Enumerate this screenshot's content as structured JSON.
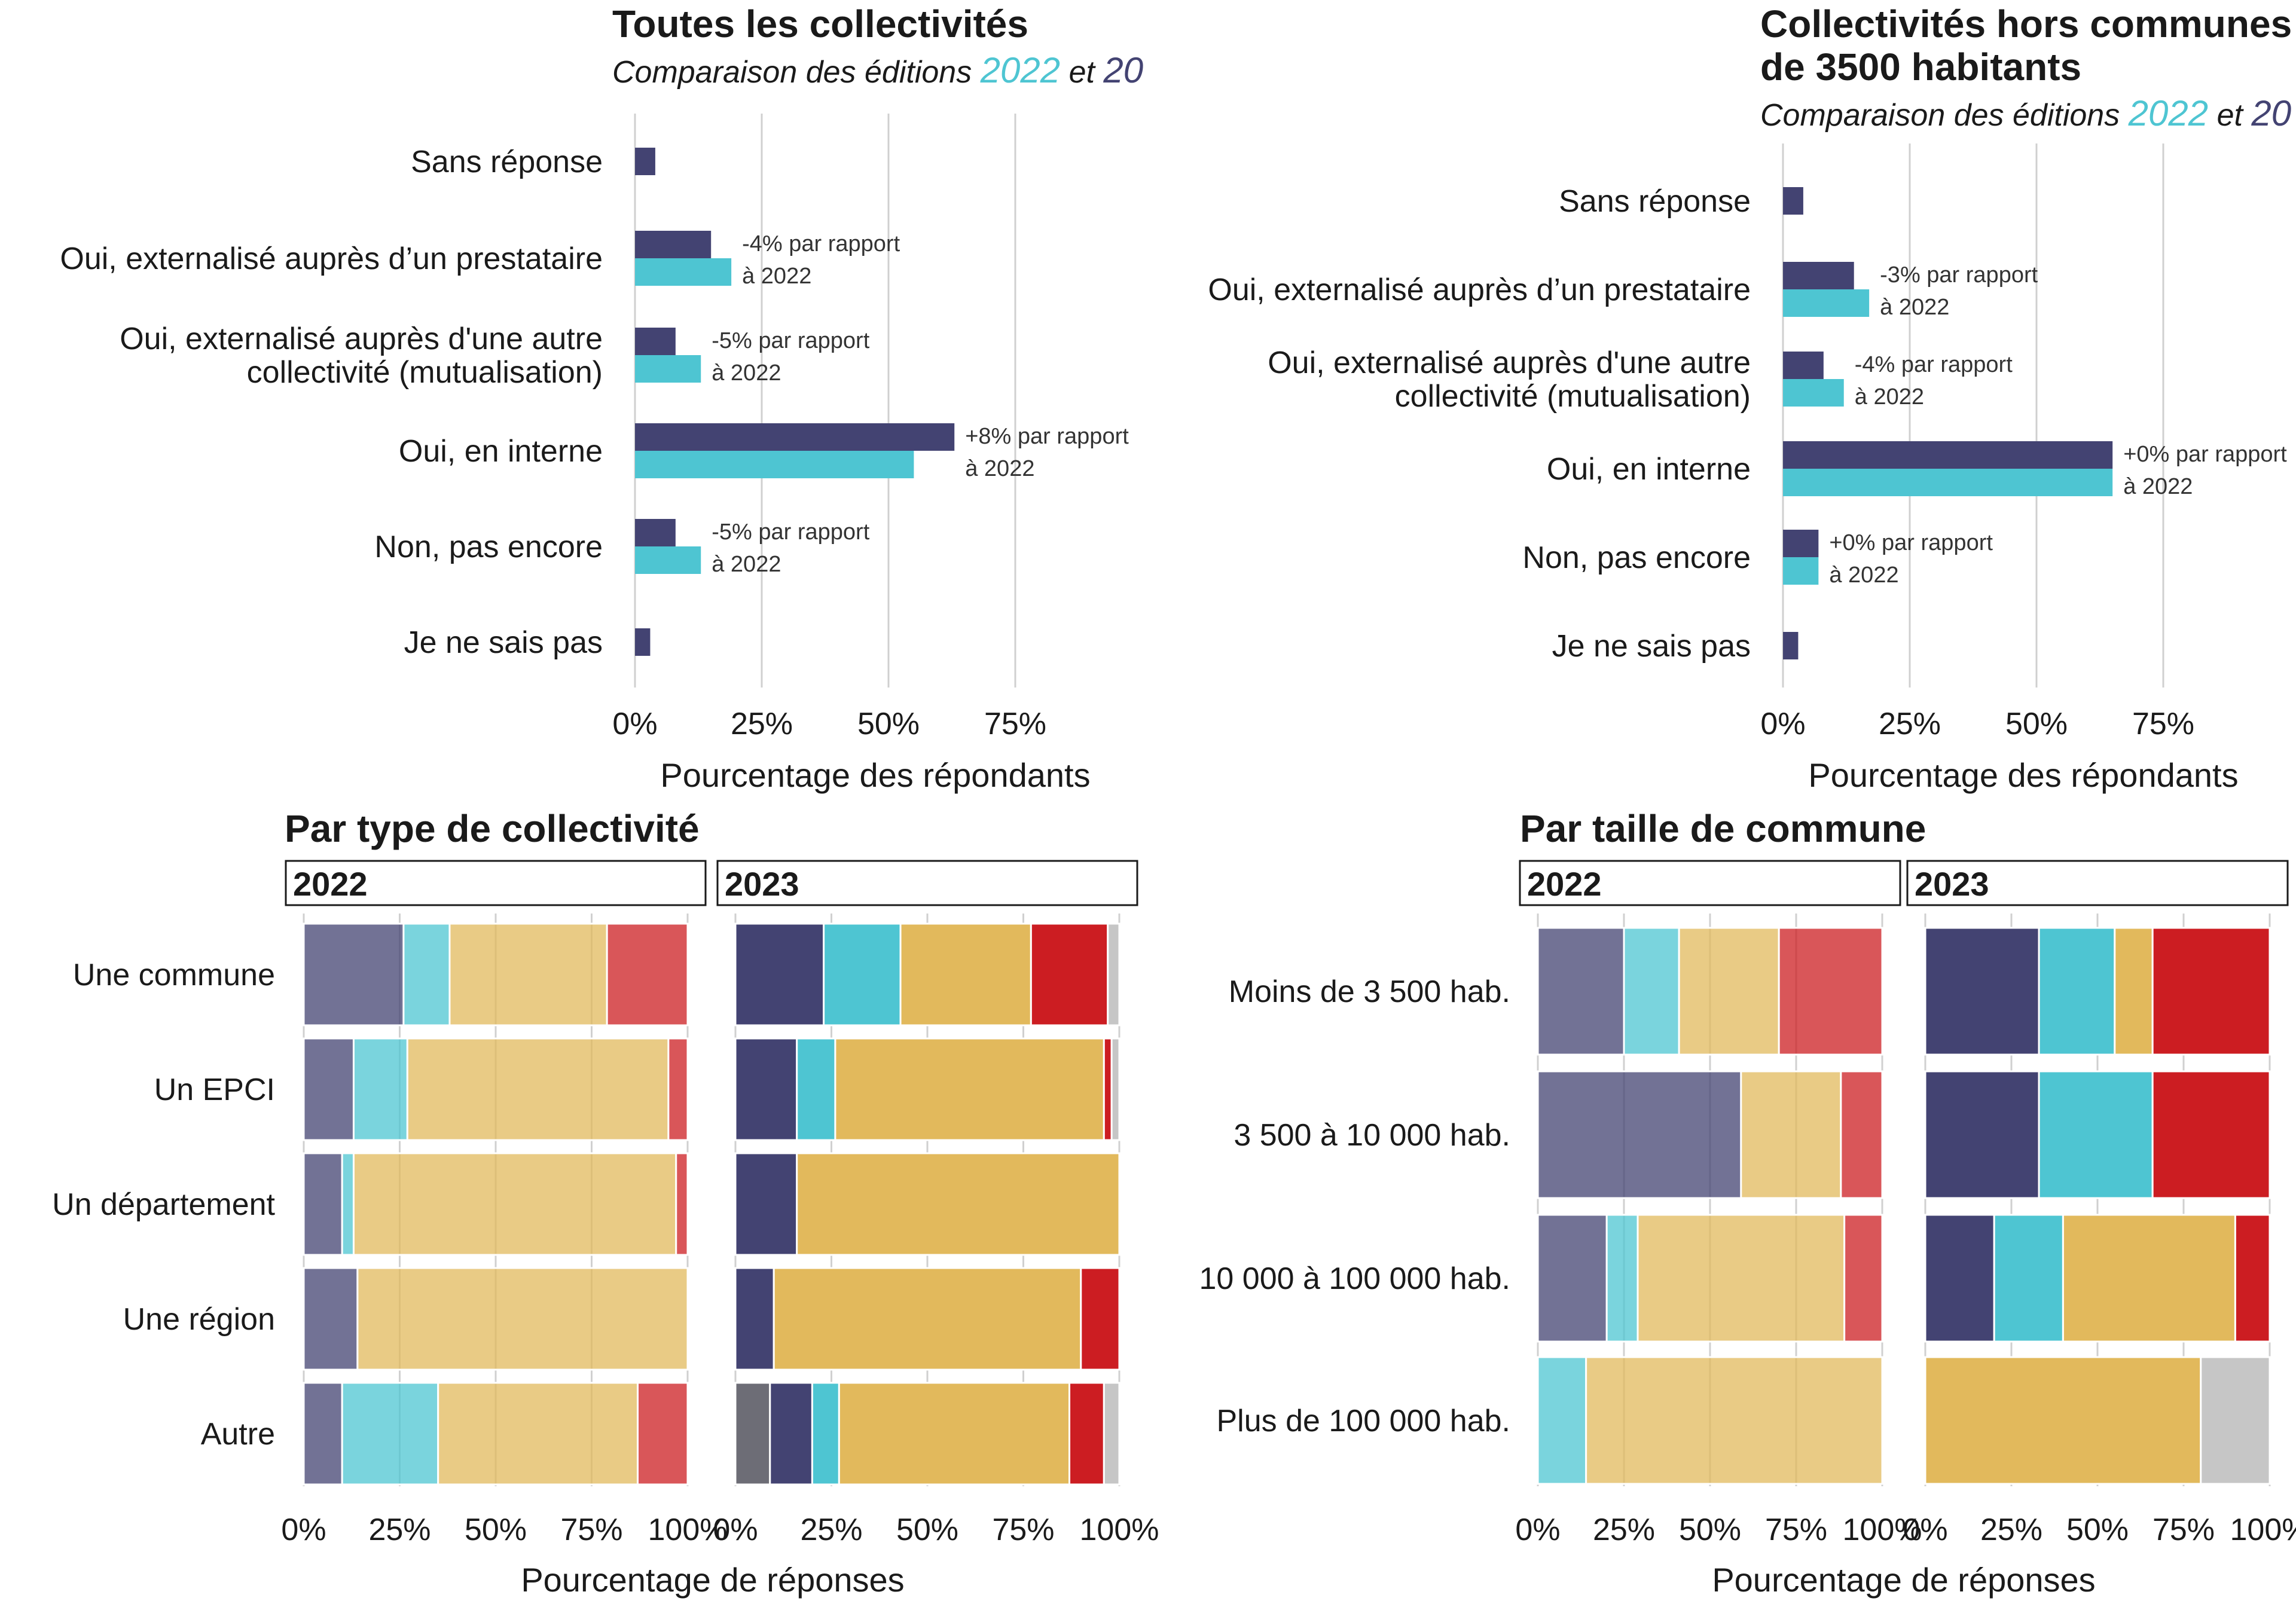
{
  "palette": {
    "navy": "#434372",
    "teal": "#4ec5d2",
    "gold": "#e2b95c",
    "red": "#cc1d22",
    "grey": "#c6c6c6",
    "darkgrey": "#6d6d76",
    "grid": "#d0d0d0"
  },
  "chart_data": [
    {
      "type": "bar",
      "title": "Toutes les collectivités",
      "subtitle": [
        "Comparaison des éditions ",
        "2022",
        " et ",
        "20"
      ],
      "xlabel": "Pourcentage des répondants",
      "xticks": [
        "0%",
        "25%",
        "50%",
        "75%"
      ],
      "xlim": [
        0,
        100
      ],
      "categories": [
        "Sans réponse",
        "Oui, externalisé auprès d’un prestataire",
        "Oui, externalisé auprès d'une autre\ncollectivité (mutualisation)",
        "Oui, en interne",
        "Non, pas encore",
        "Je ne sais pas"
      ],
      "series": [
        {
          "name": "2023",
          "values": [
            4,
            15,
            8,
            63,
            8,
            3
          ]
        },
        {
          "name": "2022",
          "values": [
            null,
            19,
            13,
            55,
            13,
            null
          ]
        }
      ],
      "annotations": [
        null,
        [
          "-4% par rapport",
          "à 2022"
        ],
        [
          "-5% par rapport",
          "à 2022"
        ],
        [
          "+8% par rapport",
          "à 2022"
        ],
        [
          "-5% par rapport",
          "à 2022"
        ],
        null
      ]
    },
    {
      "type": "bar",
      "title": [
        "Collectivités hors communes",
        "de 3500 habitants"
      ],
      "subtitle": [
        "Comparaison des éditions ",
        "2022",
        " et ",
        "20"
      ],
      "xlabel": "Pourcentage des répondants",
      "xticks": [
        "0%",
        "25%",
        "50%",
        "75%"
      ],
      "xlim": [
        0,
        100
      ],
      "categories": [
        "Sans réponse",
        "Oui, externalisé auprès d’un prestataire",
        "Oui, externalisé auprès d'une autre\ncollectivité (mutualisation)",
        "Oui, en interne",
        "Non, pas encore",
        "Je ne sais pas"
      ],
      "series": [
        {
          "name": "2023",
          "values": [
            4,
            14,
            8,
            65,
            7,
            3
          ]
        },
        {
          "name": "2022",
          "values": [
            null,
            17,
            12,
            65,
            7,
            null
          ]
        }
      ],
      "annotations": [
        null,
        [
          "-3% par rapport",
          "à 2022"
        ],
        [
          "-4% par rapport",
          "à 2022"
        ],
        [
          "+0% par rapport",
          "à 2022"
        ],
        [
          "+0% par rapport",
          "à 2022"
        ],
        null
      ]
    },
    {
      "type": "bar",
      "stacked": true,
      "title": "Par type de collectivité",
      "xlabel": "Pourcentage de réponses",
      "xticks": [
        "0%",
        "25%",
        "50%",
        "75%",
        "100%"
      ],
      "xlim": [
        0,
        100
      ],
      "categories": [
        "Une commune",
        "Un EPCI",
        "Un département",
        "Une région",
        "Autre"
      ],
      "facets": [
        {
          "label": "2022",
          "rows": [
            [
              {
                "c": "navy",
                "v": 26
              },
              {
                "c": "teal",
                "v": 12
              },
              {
                "c": "gold",
                "v": 41
              },
              {
                "c": "red",
                "v": 21
              }
            ],
            [
              {
                "c": "navy",
                "v": 13
              },
              {
                "c": "teal",
                "v": 14
              },
              {
                "c": "gold",
                "v": 68
              },
              {
                "c": "red",
                "v": 5
              }
            ],
            [
              {
                "c": "navy",
                "v": 10
              },
              {
                "c": "teal",
                "v": 3
              },
              {
                "c": "gold",
                "v": 84
              },
              {
                "c": "red",
                "v": 3
              }
            ],
            [
              {
                "c": "navy",
                "v": 14
              },
              {
                "c": "gold",
                "v": 86
              }
            ],
            [
              {
                "c": "navy",
                "v": 10
              },
              {
                "c": "teal",
                "v": 25
              },
              {
                "c": "gold",
                "v": 52
              },
              {
                "c": "red",
                "v": 13
              }
            ]
          ]
        },
        {
          "label": "2023",
          "rows": [
            [
              {
                "c": "navy",
                "v": 23
              },
              {
                "c": "teal",
                "v": 20
              },
              {
                "c": "gold",
                "v": 34
              },
              {
                "c": "red",
                "v": 20
              },
              {
                "c": "grey",
                "v": 3
              }
            ],
            [
              {
                "c": "navy",
                "v": 16
              },
              {
                "c": "teal",
                "v": 10
              },
              {
                "c": "gold",
                "v": 70
              },
              {
                "c": "red",
                "v": 2
              },
              {
                "c": "grey",
                "v": 2
              }
            ],
            [
              {
                "c": "navy",
                "v": 16
              },
              {
                "c": "gold",
                "v": 84
              }
            ],
            [
              {
                "c": "navy",
                "v": 10
              },
              {
                "c": "gold",
                "v": 80
              },
              {
                "c": "red",
                "v": 10
              }
            ],
            [
              {
                "c": "darkgrey",
                "v": 9
              },
              {
                "c": "navy",
                "v": 11
              },
              {
                "c": "teal",
                "v": 7
              },
              {
                "c": "gold",
                "v": 60
              },
              {
                "c": "red",
                "v": 9
              },
              {
                "c": "grey",
                "v": 4
              }
            ]
          ]
        }
      ]
    },
    {
      "type": "bar",
      "stacked": true,
      "title": "Par taille de commune",
      "xlabel": "Pourcentage de réponses",
      "xticks": [
        "0%",
        "25%",
        "50%",
        "75%",
        "100%"
      ],
      "xlim": [
        0,
        100
      ],
      "categories": [
        "Moins de 3 500 hab.",
        "3 500 à 10 000 hab.",
        "10 000 à 100 000 hab.",
        "Plus de 100 000 hab."
      ],
      "facets": [
        {
          "label": "2022",
          "rows": [
            [
              {
                "c": "navy",
                "v": 25
              },
              {
                "c": "teal",
                "v": 16
              },
              {
                "c": "gold",
                "v": 29
              },
              {
                "c": "red",
                "v": 30
              }
            ],
            [
              {
                "c": "navy",
                "v": 59
              },
              {
                "c": "gold",
                "v": 29
              },
              {
                "c": "red",
                "v": 12
              }
            ],
            [
              {
                "c": "navy",
                "v": 20
              },
              {
                "c": "teal",
                "v": 9
              },
              {
                "c": "gold",
                "v": 60
              },
              {
                "c": "red",
                "v": 11
              }
            ],
            [
              {
                "c": "teal",
                "v": 14
              },
              {
                "c": "gold",
                "v": 86
              }
            ]
          ]
        },
        {
          "label": "2023",
          "rows": [
            [
              {
                "c": "navy",
                "v": 33
              },
              {
                "c": "teal",
                "v": 22
              },
              {
                "c": "gold",
                "v": 11
              },
              {
                "c": "red",
                "v": 34
              }
            ],
            [
              {
                "c": "navy",
                "v": 33
              },
              {
                "c": "teal",
                "v": 33
              },
              {
                "c": "red",
                "v": 34
              }
            ],
            [
              {
                "c": "navy",
                "v": 20
              },
              {
                "c": "teal",
                "v": 20
              },
              {
                "c": "gold",
                "v": 50
              },
              {
                "c": "red",
                "v": 10
              }
            ],
            [
              {
                "c": "gold",
                "v": 80
              },
              {
                "c": "grey",
                "v": 20
              }
            ]
          ]
        }
      ]
    }
  ]
}
